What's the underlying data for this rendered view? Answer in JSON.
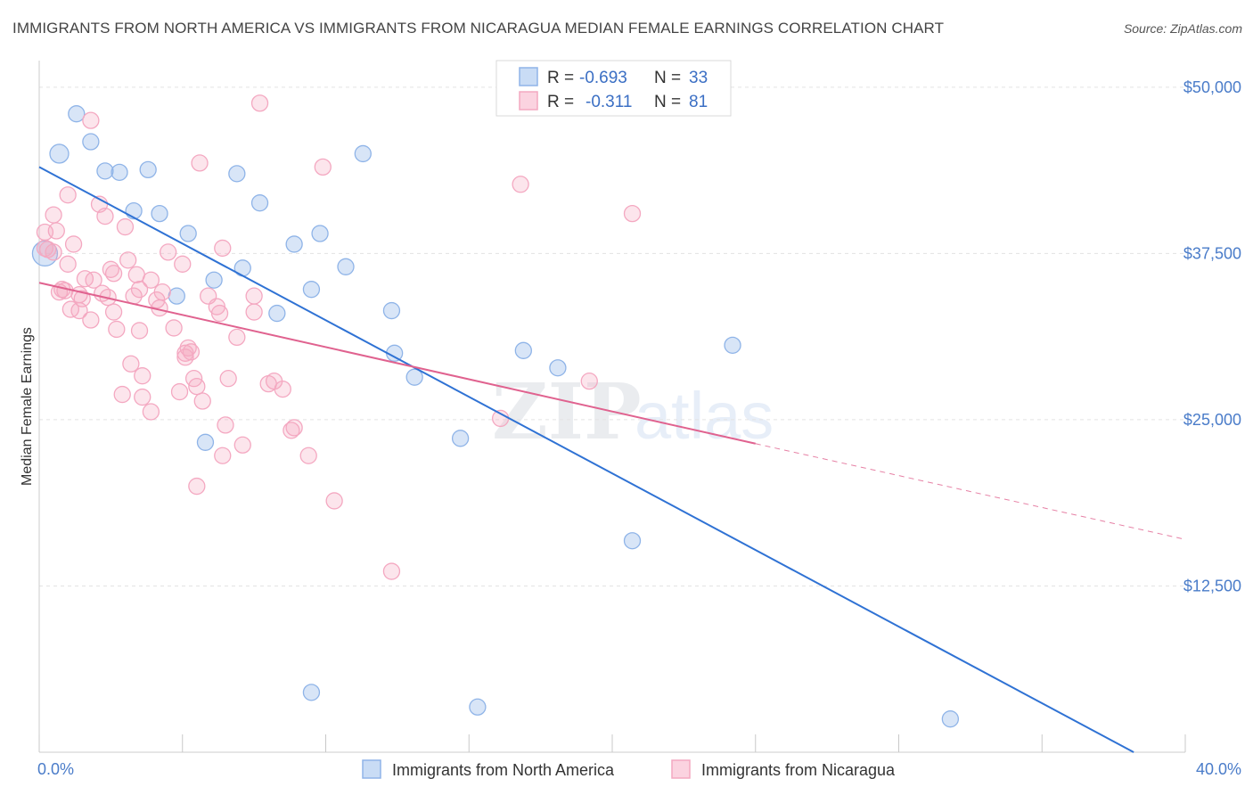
{
  "title": "IMMIGRANTS FROM NORTH AMERICA VS IMMIGRANTS FROM NICARAGUA MEDIAN FEMALE EARNINGS CORRELATION CHART",
  "source": "Source: ZipAtlas.com",
  "watermark": {
    "zip": "ZIP",
    "atlas": "atlas"
  },
  "chart_data": {
    "type": "scatter",
    "ylabel": "Median Female Earnings",
    "xlim": [
      0,
      40
    ],
    "ylim": [
      0,
      52000
    ],
    "x_tick_labels": {
      "min": "0.0%",
      "max": "40.0%"
    },
    "y_ticks": [
      {
        "value": 12500,
        "label": "$12,500"
      },
      {
        "value": 25000,
        "label": "$25,000"
      },
      {
        "value": 37500,
        "label": "$37,500"
      },
      {
        "value": 50000,
        "label": "$50,000"
      }
    ],
    "grid": true,
    "legend_position": "top-center",
    "series": [
      {
        "name": "Immigrants from North America",
        "color": "#8fb4e8",
        "line_color": "#2f72d4",
        "r_label": "R =",
        "r_value": "-0.693",
        "n_label": "N =",
        "n_value": "33",
        "trend": {
          "x0": 0,
          "y0": 44000,
          "x1": 38.2,
          "y1": 0
        },
        "points": [
          [
            0.2,
            37500
          ],
          [
            1.3,
            48000
          ],
          [
            0.7,
            45000
          ],
          [
            1.8,
            45900
          ],
          [
            2.3,
            43700
          ],
          [
            2.8,
            43600
          ],
          [
            3.8,
            43800
          ],
          [
            3.3,
            40700
          ],
          [
            4.2,
            40500
          ],
          [
            5.2,
            39000
          ],
          [
            6.9,
            43500
          ],
          [
            7.7,
            41300
          ],
          [
            6.1,
            35500
          ],
          [
            7.1,
            36400
          ],
          [
            8.9,
            38200
          ],
          [
            9.8,
            39000
          ],
          [
            10.7,
            36500
          ],
          [
            11.3,
            45000
          ],
          [
            4.8,
            34300
          ],
          [
            8.3,
            33000
          ],
          [
            9.5,
            34800
          ],
          [
            12.3,
            33200
          ],
          [
            12.4,
            30000
          ],
          [
            13.1,
            28200
          ],
          [
            16.9,
            30200
          ],
          [
            18.1,
            28900
          ],
          [
            24.2,
            30600
          ],
          [
            5.8,
            23300
          ],
          [
            14.7,
            23600
          ],
          [
            20.7,
            15900
          ],
          [
            9.5,
            4500
          ],
          [
            15.3,
            3400
          ],
          [
            31.8,
            2500
          ]
        ]
      },
      {
        "name": "Immigrants from Nicaragua",
        "color": "#f4a8c1",
        "line_color": "#e0628f",
        "r_label": "R =",
        "r_value": "-0.311",
        "n_label": "N =",
        "n_value": "81",
        "trend": {
          "x0": 0,
          "y0": 35300,
          "x1": 25,
          "y1": 23200
        },
        "trend_dashed": {
          "x0": 25,
          "y0": 23200,
          "x1": 40,
          "y1": 16000
        },
        "points": [
          [
            7.7,
            48800
          ],
          [
            1.8,
            47500
          ],
          [
            5.6,
            44300
          ],
          [
            9.9,
            44000
          ],
          [
            16.8,
            42700
          ],
          [
            20.7,
            40500
          ],
          [
            2.1,
            41200
          ],
          [
            0.5,
            40400
          ],
          [
            1.0,
            41900
          ],
          [
            2.3,
            40300
          ],
          [
            3.0,
            39500
          ],
          [
            0.2,
            39100
          ],
          [
            0.6,
            39200
          ],
          [
            0.2,
            37900
          ],
          [
            0.5,
            37600
          ],
          [
            1.2,
            38200
          ],
          [
            1.0,
            36700
          ],
          [
            3.1,
            37000
          ],
          [
            4.5,
            37600
          ],
          [
            5.0,
            36700
          ],
          [
            6.4,
            37900
          ],
          [
            2.5,
            36300
          ],
          [
            2.6,
            36000
          ],
          [
            3.4,
            35900
          ],
          [
            3.9,
            35500
          ],
          [
            1.6,
            35600
          ],
          [
            1.9,
            35500
          ],
          [
            0.7,
            34600
          ],
          [
            0.8,
            34800
          ],
          [
            1.4,
            34400
          ],
          [
            1.5,
            34100
          ],
          [
            2.2,
            34500
          ],
          [
            2.4,
            34200
          ],
          [
            3.3,
            34300
          ],
          [
            3.5,
            34800
          ],
          [
            4.1,
            34000
          ],
          [
            4.3,
            34600
          ],
          [
            5.9,
            34300
          ],
          [
            7.5,
            34300
          ],
          [
            1.4,
            33200
          ],
          [
            2.6,
            33100
          ],
          [
            4.2,
            33400
          ],
          [
            6.2,
            33500
          ],
          [
            6.3,
            33000
          ],
          [
            7.5,
            33100
          ],
          [
            1.8,
            32500
          ],
          [
            2.7,
            31800
          ],
          [
            3.5,
            31700
          ],
          [
            4.7,
            31900
          ],
          [
            6.9,
            31200
          ],
          [
            5.1,
            30000
          ],
          [
            5.3,
            30100
          ],
          [
            5.1,
            29700
          ],
          [
            5.2,
            30400
          ],
          [
            3.2,
            29200
          ],
          [
            3.6,
            28300
          ],
          [
            5.4,
            28100
          ],
          [
            6.6,
            28100
          ],
          [
            8.2,
            27900
          ],
          [
            8.0,
            27700
          ],
          [
            8.5,
            27300
          ],
          [
            19.2,
            27900
          ],
          [
            2.9,
            26900
          ],
          [
            3.6,
            26700
          ],
          [
            4.9,
            27100
          ],
          [
            5.5,
            27500
          ],
          [
            5.7,
            26400
          ],
          [
            3.9,
            25600
          ],
          [
            6.5,
            24600
          ],
          [
            8.8,
            24200
          ],
          [
            8.9,
            24400
          ],
          [
            16.1,
            25100
          ],
          [
            7.1,
            23100
          ],
          [
            6.4,
            22300
          ],
          [
            9.4,
            22300
          ],
          [
            5.5,
            20000
          ],
          [
            10.3,
            18900
          ],
          [
            12.3,
            13600
          ],
          [
            0.3,
            37800
          ],
          [
            0.9,
            34700
          ],
          [
            1.1,
            33300
          ]
        ]
      }
    ]
  }
}
